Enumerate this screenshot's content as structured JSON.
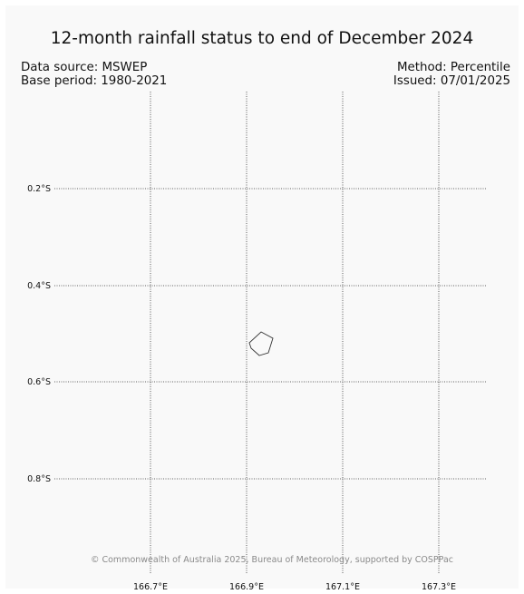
{
  "title": "12-month rainfall status to end of December 2024",
  "info": {
    "data_source": "Data source: MSWEP",
    "base_period": "Base period: 1980-2021",
    "method": "Method: Percentile",
    "issued": "Issued: 07/01/2025"
  },
  "map": {
    "lon_ticks": [
      "166.7°E",
      "166.9°E",
      "167.1°E",
      "167.3°E"
    ],
    "lat_ticks": [
      "0.2°S",
      "0.4°S",
      "0.6°S",
      "0.8°S"
    ],
    "land_feature": "island",
    "credit": "© Commonwealth of Australia 2025, Bureau of Meteorology, supported by COSPPac"
  }
}
